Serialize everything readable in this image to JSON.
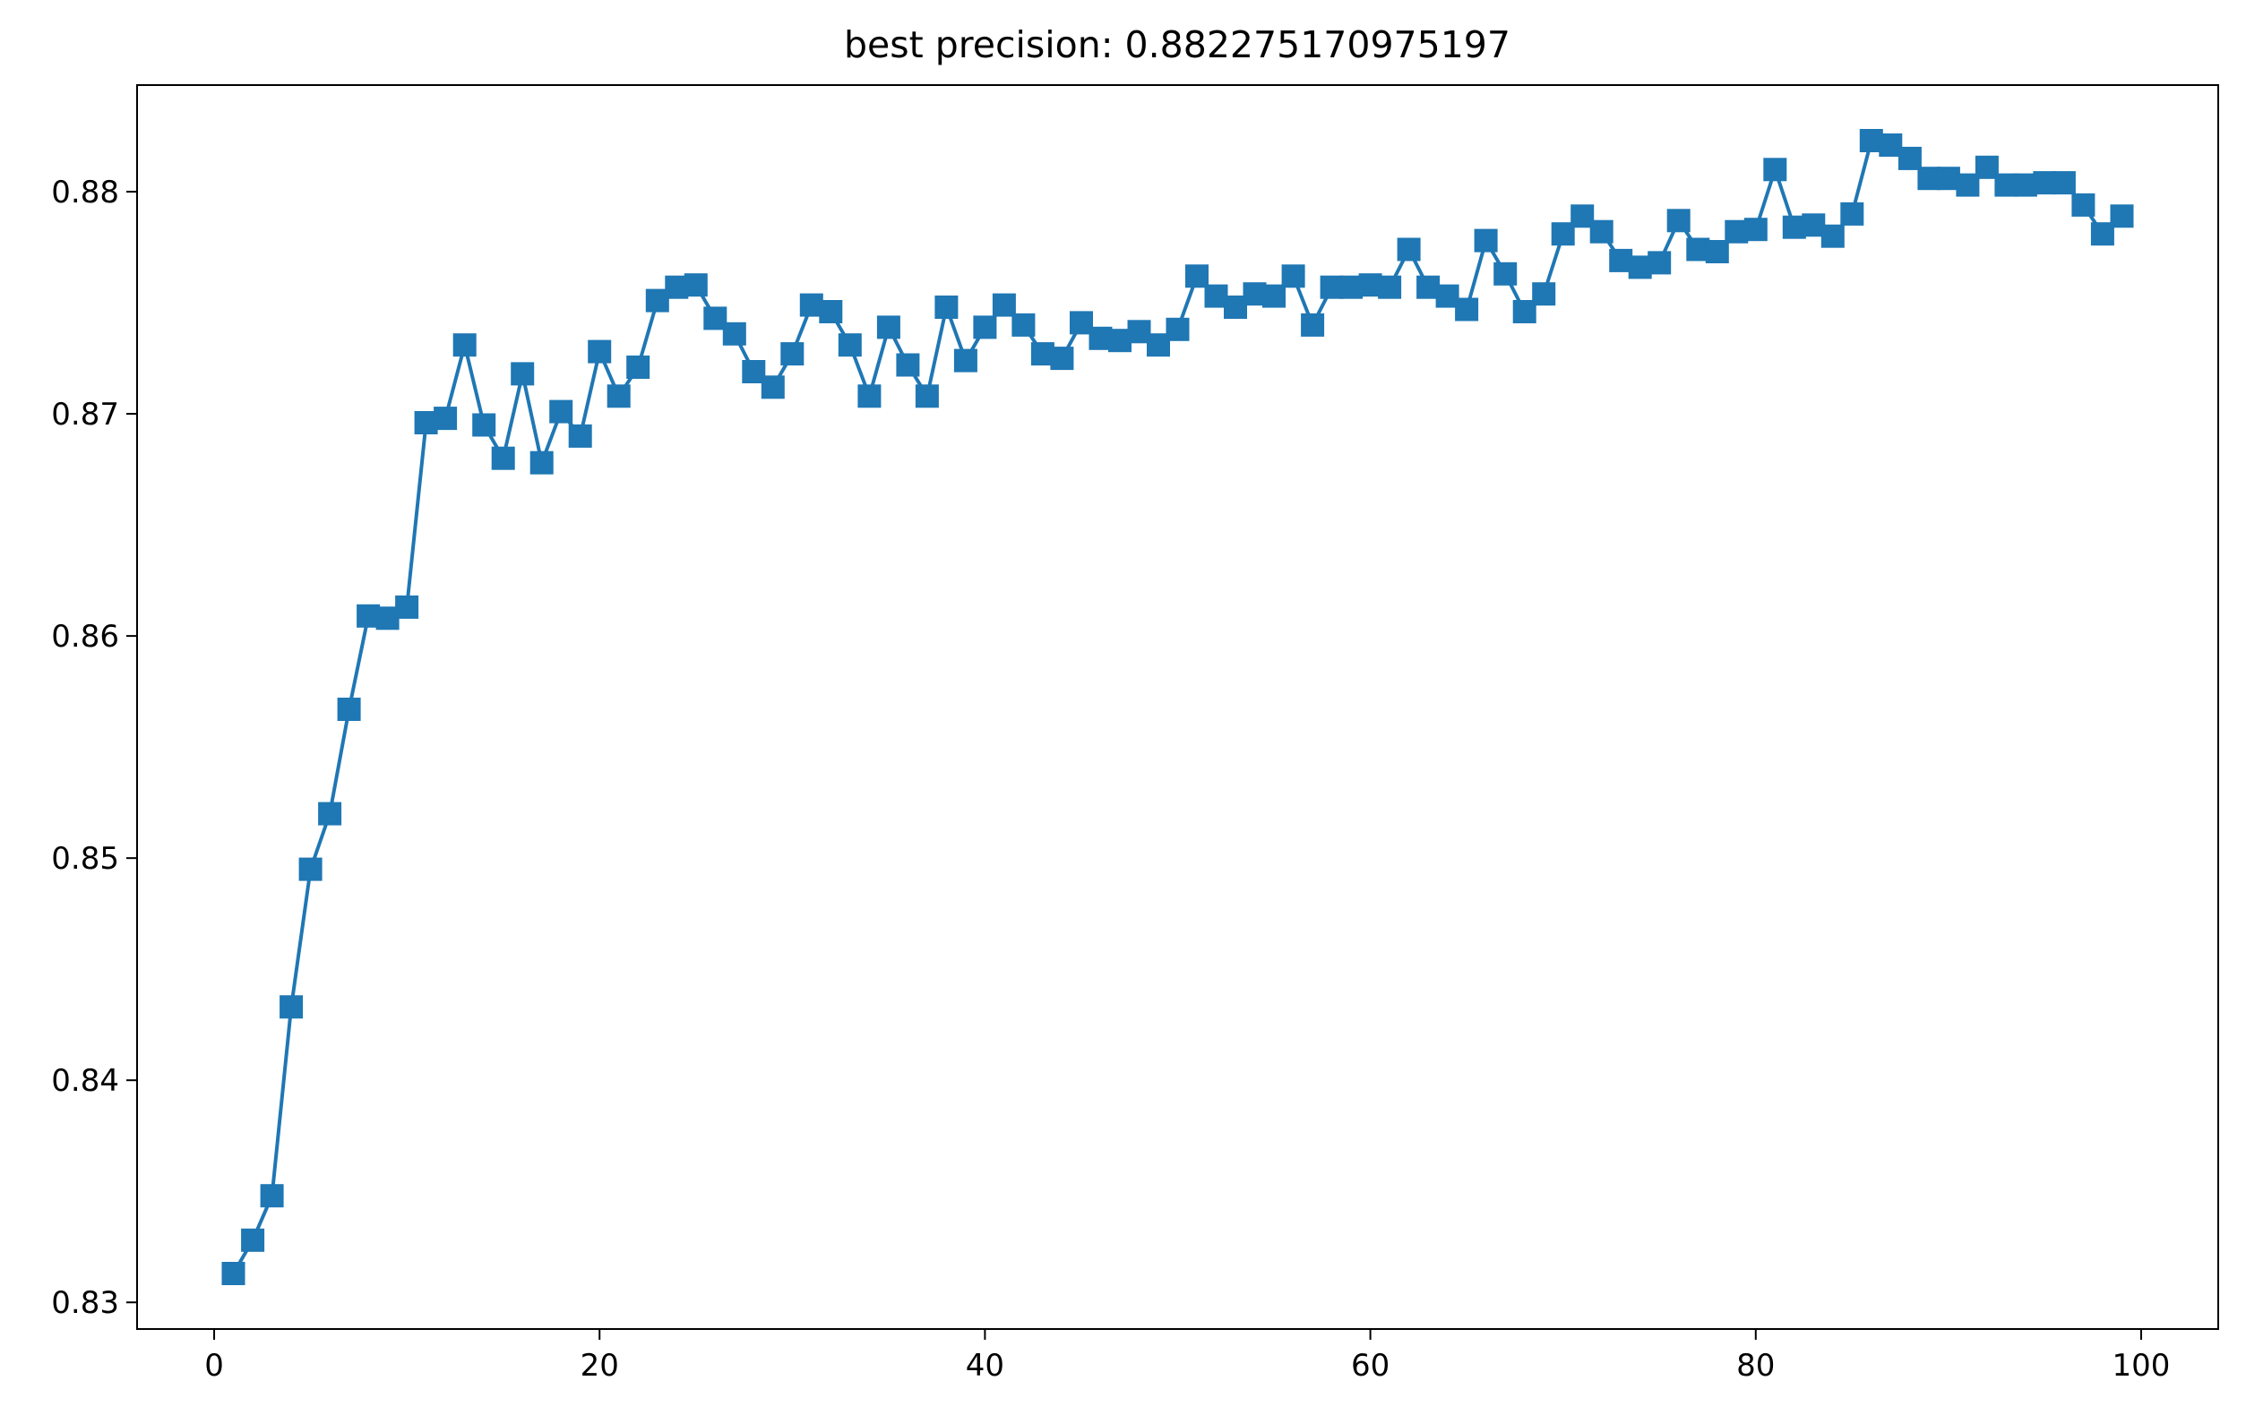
{
  "chart_data": {
    "type": "line",
    "title": "best precision: 0.882275170975197",
    "xlabel": "",
    "ylabel": "",
    "xlim": [
      -4,
      104
    ],
    "ylim": [
      0.8288,
      0.8848
    ],
    "x_ticks": [
      0,
      20,
      40,
      60,
      80,
      100
    ],
    "x_tick_labels": [
      "0",
      "20",
      "40",
      "60",
      "80",
      "100"
    ],
    "y_ticks": [
      0.83,
      0.84,
      0.85,
      0.86,
      0.87,
      0.88
    ],
    "y_tick_labels": [
      "0.83",
      "0.84",
      "0.85",
      "0.86",
      "0.87",
      "0.88"
    ],
    "grid": false,
    "legend": "none",
    "marker": "square",
    "color": "#1f77b4",
    "series": [
      {
        "x": [
          1,
          2,
          3,
          4,
          5,
          6,
          7,
          8,
          9,
          10,
          11,
          12,
          13,
          14,
          15,
          16,
          17,
          18,
          19,
          20,
          21,
          22,
          23,
          24,
          25,
          26,
          27,
          28,
          29,
          30,
          31,
          32,
          33,
          34,
          35,
          36,
          37,
          38,
          39,
          40,
          41,
          42,
          43,
          44,
          45,
          46,
          47,
          48,
          49,
          50,
          51,
          52,
          53,
          54,
          55,
          56,
          57,
          58,
          59,
          60,
          61,
          62,
          63,
          64,
          65,
          66,
          67,
          68,
          69,
          70,
          71,
          72,
          73,
          74,
          75,
          76,
          77,
          78,
          79,
          80,
          81,
          82,
          83,
          84,
          85,
          86,
          87,
          88,
          89,
          90,
          91,
          92,
          93,
          94,
          95,
          96,
          97,
          98,
          99
        ],
        "values": [
          0.8313,
          0.8328,
          0.8348,
          0.8433,
          0.8495,
          0.852,
          0.8567,
          0.8609,
          0.8608,
          0.8613,
          0.8696,
          0.8698,
          0.8731,
          0.8695,
          0.868,
          0.8718,
          0.8678,
          0.8701,
          0.869,
          0.8728,
          0.8708,
          0.8721,
          0.8751,
          0.8757,
          0.8758,
          0.8743,
          0.8736,
          0.8719,
          0.8712,
          0.8727,
          0.8749,
          0.8746,
          0.8731,
          0.8708,
          0.8739,
          0.8722,
          0.8708,
          0.8748,
          0.8724,
          0.8739,
          0.8749,
          0.874,
          0.8727,
          0.8725,
          0.8741,
          0.8734,
          0.8733,
          0.8737,
          0.8731,
          0.8738,
          0.8762,
          0.8753,
          0.8748,
          0.8754,
          0.8753,
          0.8762,
          0.874,
          0.8757,
          0.8757,
          0.8758,
          0.8757,
          0.8774,
          0.8757,
          0.8753,
          0.8747,
          0.8778,
          0.8763,
          0.8746,
          0.8754,
          0.8781,
          0.8789,
          0.8782,
          0.8769,
          0.8766,
          0.8768,
          0.8787,
          0.8774,
          0.8773,
          0.8782,
          0.8783,
          0.881,
          0.8784,
          0.8785,
          0.878,
          0.879,
          0.8823,
          0.8821,
          0.8815,
          0.8806,
          0.8806,
          0.8803,
          0.8811,
          0.8803,
          0.8803,
          0.8804,
          0.8804,
          0.8794,
          0.8781,
          0.8789
        ]
      }
    ]
  }
}
